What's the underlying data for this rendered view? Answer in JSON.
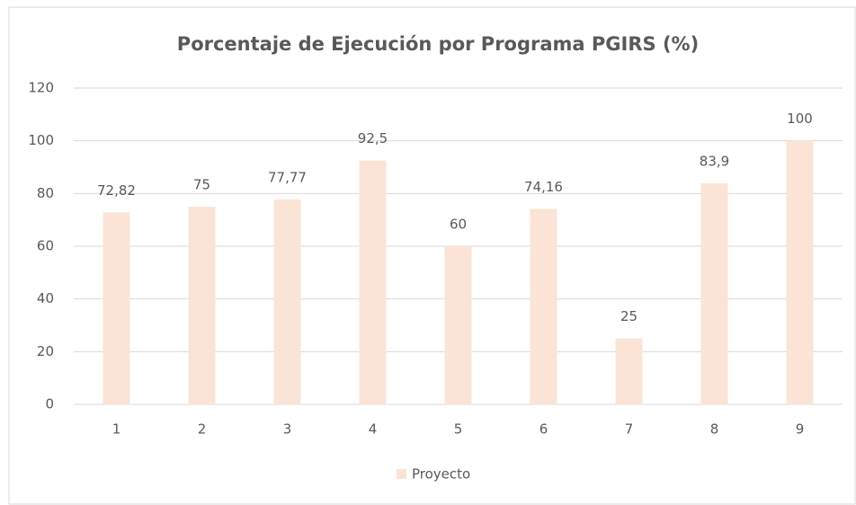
{
  "chart_data": {
    "type": "bar",
    "title": "Porcentaje de Ejecución por Programa PGIRS (%)",
    "categories": [
      "1",
      "2",
      "3",
      "4",
      "5",
      "6",
      "7",
      "8",
      "9"
    ],
    "series": [
      {
        "name": "Proyecto",
        "color": "#fbe4d5",
        "values": [
          72.82,
          75,
          77.77,
          92.5,
          60,
          74.16,
          25,
          83.9,
          100
        ],
        "value_labels": [
          "72,82",
          "75",
          "77,77",
          "92,5",
          "60",
          "74,16",
          "25",
          "83,9",
          "100"
        ]
      }
    ],
    "ylim": [
      0,
      120
    ],
    "yticks": [
      0,
      20,
      40,
      60,
      80,
      100,
      120
    ],
    "grid": true,
    "legend": "bottom"
  }
}
